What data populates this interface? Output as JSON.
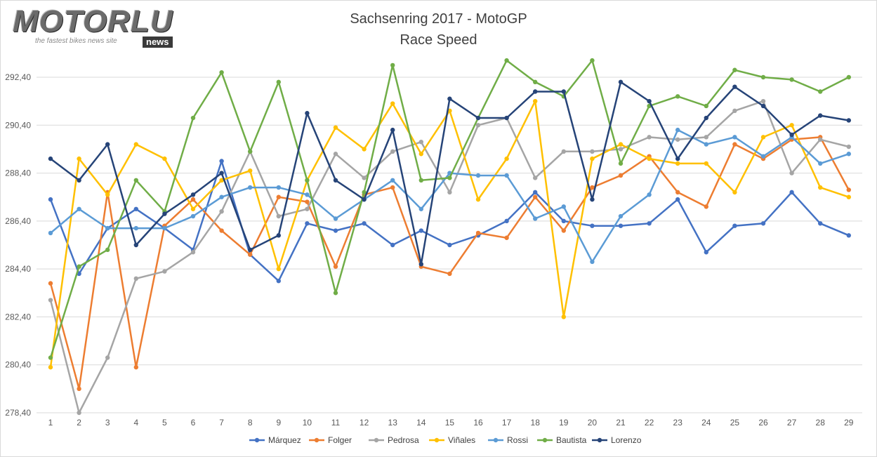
{
  "logo": {
    "main": "MOTORLU",
    "tagline": "the fastest bikes news site",
    "badge": "news"
  },
  "colors": {
    "Márquez": "#4472C4",
    "Folger": "#ED7D31",
    "Pedrosa": "#A5A5A5",
    "Viñales": "#FFC000",
    "Rossi": "#5B9BD5",
    "Bautista": "#70AD47",
    "Lorenzo": "#264478",
    "grid": "#d9d9d9"
  },
  "chart_data": {
    "type": "line",
    "title": "Sachsenring 2017 - MotoGP",
    "subtitle": "Race Speed",
    "xlabel": "",
    "ylabel": "",
    "x": [
      1,
      2,
      3,
      4,
      5,
      6,
      7,
      8,
      9,
      10,
      11,
      12,
      13,
      14,
      15,
      16,
      17,
      18,
      19,
      20,
      21,
      22,
      23,
      24,
      25,
      26,
      27,
      28,
      29
    ],
    "ylim": [
      278.4,
      292.4
    ],
    "yticks": [
      278.4,
      280.4,
      282.4,
      284.4,
      286.4,
      288.4,
      290.4,
      292.4
    ],
    "ytick_labels": [
      "278,40",
      "280,40",
      "282,40",
      "284,40",
      "286,40",
      "288,40",
      "290,40",
      "292,40"
    ],
    "grid": true,
    "legend_position": "bottom",
    "series": [
      {
        "name": "Márquez",
        "values": [
          287.3,
          284.2,
          286.1,
          286.9,
          286.1,
          285.2,
          288.9,
          285.0,
          283.9,
          286.3,
          286.0,
          286.3,
          285.4,
          286.0,
          285.4,
          285.8,
          286.4,
          287.6,
          286.4,
          286.2,
          286.2,
          286.3,
          287.3,
          285.1,
          286.2,
          286.3,
          287.6,
          286.3,
          285.8
        ]
      },
      {
        "name": "Folger",
        "values": [
          283.8,
          279.4,
          287.6,
          280.3,
          286.2,
          287.3,
          286.0,
          285.0,
          287.4,
          287.2,
          284.5,
          287.5,
          287.8,
          284.5,
          284.2,
          285.9,
          285.7,
          287.4,
          286.0,
          287.8,
          288.3,
          289.1,
          287.6,
          287.0,
          289.6,
          289.0,
          289.8,
          289.9,
          287.7
        ]
      },
      {
        "name": "Pedrosa",
        "values": [
          283.1,
          278.4,
          280.7,
          284.0,
          284.3,
          285.1,
          286.8,
          289.3,
          286.6,
          286.9,
          289.2,
          288.2,
          289.3,
          289.7,
          287.6,
          290.4,
          290.7,
          288.2,
          289.3,
          289.3,
          289.4,
          289.9,
          289.8,
          289.9,
          291.0,
          291.4,
          288.4,
          289.8,
          289.5
        ]
      },
      {
        "name": "Viñales",
        "values": [
          280.3,
          289.0,
          287.5,
          289.6,
          289.0,
          286.9,
          288.1,
          288.5,
          284.4,
          288.1,
          290.3,
          289.4,
          291.3,
          289.2,
          291.0,
          287.3,
          289.0,
          291.4,
          282.4,
          289.0,
          289.6,
          289.0,
          288.8,
          288.8,
          287.6,
          289.9,
          290.4,
          287.8,
          287.4
        ]
      },
      {
        "name": "Rossi",
        "values": [
          285.9,
          286.9,
          286.1,
          286.1,
          286.1,
          286.6,
          287.4,
          287.8,
          287.8,
          287.5,
          286.5,
          287.3,
          288.1,
          286.9,
          288.4,
          288.3,
          288.3,
          286.5,
          287.0,
          284.7,
          286.6,
          287.5,
          290.2,
          289.6,
          289.9,
          289.1,
          289.9,
          288.8,
          289.2
        ]
      },
      {
        "name": "Bautista",
        "values": [
          280.7,
          284.5,
          285.2,
          288.1,
          286.8,
          290.7,
          292.6,
          289.3,
          292.2,
          288.1,
          283.4,
          287.6,
          292.9,
          288.1,
          288.2,
          290.7,
          293.1,
          292.2,
          291.6,
          293.1,
          288.8,
          291.2,
          291.6,
          291.2,
          292.7,
          292.4,
          292.3,
          291.8,
          292.4
        ]
      },
      {
        "name": "Lorenzo",
        "values": [
          289.0,
          288.1,
          289.6,
          285.4,
          286.7,
          287.5,
          288.4,
          285.2,
          285.8,
          290.9,
          288.1,
          287.3,
          290.2,
          284.6,
          291.5,
          290.7,
          290.7,
          291.8,
          291.8,
          287.3,
          292.2,
          291.4,
          289.0,
          290.7,
          292.0,
          291.2,
          290.0,
          290.8,
          290.6
        ]
      }
    ]
  }
}
